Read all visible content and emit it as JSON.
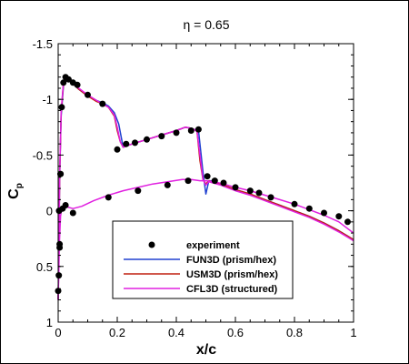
{
  "chart_data": {
    "type": "line",
    "title": "η = 0.65",
    "xlabel": "x/c",
    "ylabel": "C",
    "ylabel_sub": "p",
    "xlim": [
      0,
      1
    ],
    "ylim": [
      1,
      -1.5
    ],
    "y_inverted": true,
    "x_ticks": [
      0,
      0.2,
      0.4,
      0.6,
      0.8,
      1
    ],
    "x_tick_labels": [
      "0",
      "0.2",
      "0.4",
      "0.6",
      "0.8",
      "1"
    ],
    "y_ticks": [
      -1.5,
      -1,
      -0.5,
      0,
      0.5,
      1
    ],
    "y_tick_labels": [
      "-1.5",
      "-1",
      "-0.5",
      "0",
      "0.5",
      "1"
    ],
    "grid": false,
    "legend_position": "bottom-center",
    "series": [
      {
        "name": "experiment",
        "kind": "scatter",
        "color": "#000000",
        "x": [
          0.0,
          0.002,
          0.005,
          0.008,
          0.012,
          0.018,
          0.025,
          0.035,
          0.05,
          0.065,
          0.1,
          0.15,
          0.2,
          0.23,
          0.26,
          0.3,
          0.35,
          0.4,
          0.45,
          0.475,
          0.505,
          0.53,
          0.56,
          0.6,
          0.65,
          0.68,
          0.72,
          0.8,
          0.85,
          0.9,
          0.95,
          0.98,
          0.003,
          0.005,
          0.008,
          0.015,
          0.025,
          0.05,
          0.17,
          0.27,
          0.37,
          0.44
        ],
        "y": [
          0.72,
          0.58,
          0.33,
          -0.33,
          -0.93,
          -1.15,
          -1.2,
          -1.18,
          -1.15,
          -1.13,
          -1.04,
          -0.96,
          -0.55,
          -0.6,
          -0.61,
          -0.64,
          -0.67,
          -0.7,
          -0.72,
          -0.73,
          -0.31,
          -0.27,
          -0.25,
          -0.21,
          -0.18,
          -0.16,
          -0.12,
          -0.06,
          -0.02,
          0.02,
          0.05,
          0.1,
          0.0,
          0.3,
          -0.33,
          -0.02,
          -0.05,
          0.02,
          -0.12,
          -0.18,
          -0.23,
          -0.27
        ]
      },
      {
        "name": "FUN3D (prism/hex)",
        "kind": "line",
        "color": "#2040d0",
        "x": [
          0.0,
          0.002,
          0.005,
          0.01,
          0.018,
          0.025,
          0.035,
          0.05,
          0.07,
          0.1,
          0.13,
          0.15,
          0.17,
          0.19,
          0.205,
          0.22,
          0.25,
          0.3,
          0.35,
          0.4,
          0.43,
          0.45,
          0.46,
          0.475,
          0.48,
          0.49,
          0.5,
          0.51,
          0.52,
          0.55,
          0.6,
          0.65,
          0.7,
          0.75,
          0.8,
          0.85,
          0.9,
          0.95,
          1.0
        ],
        "y": [
          0.8,
          0.4,
          -0.3,
          -0.85,
          -1.12,
          -1.18,
          -1.17,
          -1.14,
          -1.09,
          -1.03,
          -0.99,
          -0.97,
          -0.94,
          -0.88,
          -0.78,
          -0.57,
          -0.6,
          -0.64,
          -0.68,
          -0.72,
          -0.75,
          -0.74,
          -0.73,
          -0.72,
          -0.6,
          -0.35,
          -0.15,
          -0.27,
          -0.27,
          -0.24,
          -0.19,
          -0.15,
          -0.1,
          -0.05,
          0.0,
          0.05,
          0.11,
          0.18,
          0.26
        ]
      },
      {
        "name": "USM3D (prism/hex)",
        "kind": "line",
        "color": "#c02010",
        "x": [
          0.0,
          0.002,
          0.005,
          0.01,
          0.018,
          0.025,
          0.035,
          0.05,
          0.07,
          0.1,
          0.13,
          0.15,
          0.17,
          0.19,
          0.2,
          0.21,
          0.22,
          0.25,
          0.3,
          0.35,
          0.4,
          0.43,
          0.45,
          0.46,
          0.47,
          0.48,
          0.49,
          0.5,
          0.51,
          0.55,
          0.6,
          0.65,
          0.7,
          0.75,
          0.8,
          0.85,
          0.9,
          0.95,
          1.0
        ],
        "y": [
          0.8,
          0.4,
          -0.3,
          -0.88,
          -1.14,
          -1.19,
          -1.18,
          -1.14,
          -1.09,
          -1.03,
          -0.98,
          -0.96,
          -0.93,
          -0.85,
          -0.72,
          -0.62,
          -0.57,
          -0.6,
          -0.64,
          -0.68,
          -0.72,
          -0.75,
          -0.74,
          -0.73,
          -0.71,
          -0.45,
          -0.28,
          -0.24,
          -0.27,
          -0.24,
          -0.19,
          -0.15,
          -0.1,
          -0.05,
          0.0,
          0.05,
          0.11,
          0.18,
          0.26
        ]
      },
      {
        "name": "CFL3D (structured)",
        "kind": "line",
        "color": "#e020e0",
        "x": [
          0.0,
          0.002,
          0.005,
          0.01,
          0.018,
          0.025,
          0.035,
          0.05,
          0.07,
          0.1,
          0.13,
          0.15,
          0.17,
          0.19,
          0.2,
          0.21,
          0.22,
          0.25,
          0.3,
          0.35,
          0.4,
          0.43,
          0.45,
          0.46,
          0.47,
          0.48,
          0.49,
          0.5,
          0.51,
          0.55,
          0.6,
          0.65,
          0.7,
          0.75,
          0.8,
          0.85,
          0.9,
          0.95,
          1.0
        ],
        "y": [
          0.8,
          0.4,
          -0.3,
          -0.9,
          -1.15,
          -1.2,
          -1.19,
          -1.15,
          -1.1,
          -1.04,
          -0.99,
          -0.96,
          -0.93,
          -0.86,
          -0.75,
          -0.62,
          -0.57,
          -0.6,
          -0.64,
          -0.68,
          -0.72,
          -0.75,
          -0.74,
          -0.73,
          -0.71,
          -0.5,
          -0.28,
          -0.23,
          -0.26,
          -0.23,
          -0.18,
          -0.14,
          -0.09,
          -0.04,
          0.01,
          0.06,
          0.12,
          0.19,
          0.27
        ]
      },
      {
        "name": "",
        "kind": "line-lower",
        "color": "#e020e0",
        "x": [
          0.0,
          0.002,
          0.004,
          0.008,
          0.012,
          0.018,
          0.025,
          0.035,
          0.05,
          0.08,
          0.12,
          0.17,
          0.22,
          0.27,
          0.32,
          0.37,
          0.42,
          0.45,
          0.48,
          0.5,
          0.53,
          0.56,
          0.6,
          0.65,
          0.7,
          0.75,
          0.8,
          0.85,
          0.9,
          0.95,
          1.0
        ],
        "y": [
          0.8,
          0.55,
          0.3,
          0.05,
          -0.02,
          -0.04,
          -0.05,
          -0.03,
          -0.02,
          -0.04,
          -0.09,
          -0.14,
          -0.18,
          -0.21,
          -0.24,
          -0.26,
          -0.28,
          -0.28,
          -0.27,
          -0.27,
          -0.26,
          -0.24,
          -0.21,
          -0.18,
          -0.14,
          -0.1,
          -0.06,
          -0.01,
          0.04,
          0.1,
          0.2
        ]
      }
    ]
  }
}
